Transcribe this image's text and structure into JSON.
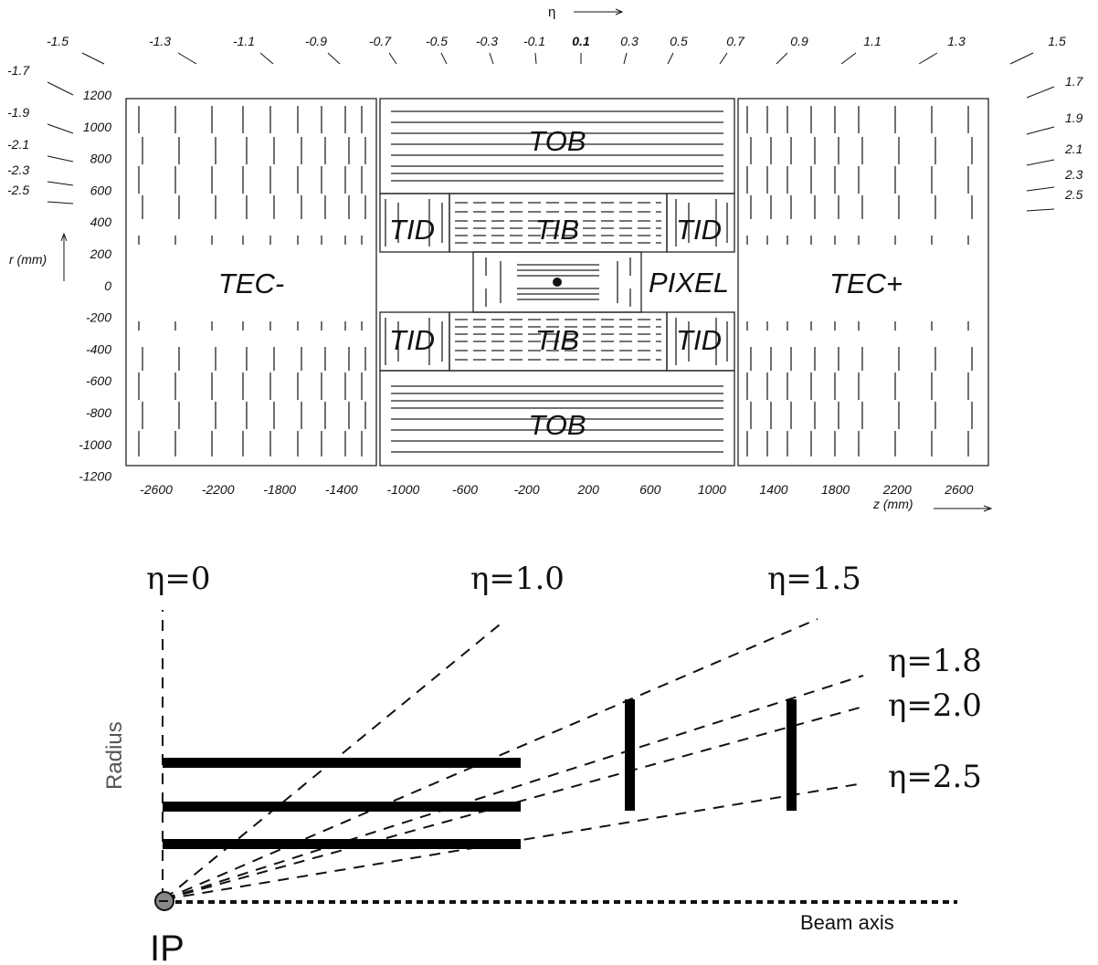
{
  "top_diagram": {
    "eta_axis_label": "η",
    "eta_ticks": [
      "-1.5",
      "-1.3",
      "-1.1",
      "-0.9",
      "-0.7",
      "-0.5",
      "-0.3",
      "-0.1",
      "0.1",
      "0.3",
      "0.5",
      "0.7",
      "0.9",
      "1.1",
      "1.3",
      "1.5"
    ],
    "eta_left_ticks": [
      "-1.7",
      "-1.9",
      "-2.1",
      "-2.3",
      "-2.5"
    ],
    "eta_right_ticks": [
      "1.7",
      "1.9",
      "2.1",
      "2.3",
      "2.5"
    ],
    "r_axis_label": "r (mm)",
    "r_ticks": [
      "1200",
      "1000",
      "800",
      "600",
      "400",
      "200",
      "0",
      "-200",
      "-400",
      "-600",
      "-800",
      "-1000",
      "-1200"
    ],
    "z_ticks": [
      "-2600",
      "-2200",
      "-1800",
      "-1400",
      "-1000",
      "-600",
      "-200",
      "200",
      "600",
      "1000",
      "1400",
      "1800",
      "2200",
      "2600"
    ],
    "z_axis_label": "z (mm)",
    "regions": {
      "tec_minus": "TEC-",
      "tec_plus": "TEC+",
      "tob_top": "TOB",
      "tob_bottom": "TOB",
      "tib_top": "TIB",
      "tib_bottom": "TIB",
      "tid_top_left": "TID",
      "tid_top_right": "TID",
      "tid_bottom_left": "TID",
      "tid_bottom_right": "TID",
      "pixel": "PIXEL"
    }
  },
  "bottom_diagram": {
    "eta_lines": [
      {
        "label": "η=0"
      },
      {
        "label": "η=1.0"
      },
      {
        "label": "η=1.5"
      },
      {
        "label": "η=1.8"
      },
      {
        "label": "η=2.0"
      },
      {
        "label": "η=2.5"
      }
    ],
    "y_axis_label": "Radius",
    "beam_axis_label": "Beam axis",
    "ip_label": "IP"
  }
}
